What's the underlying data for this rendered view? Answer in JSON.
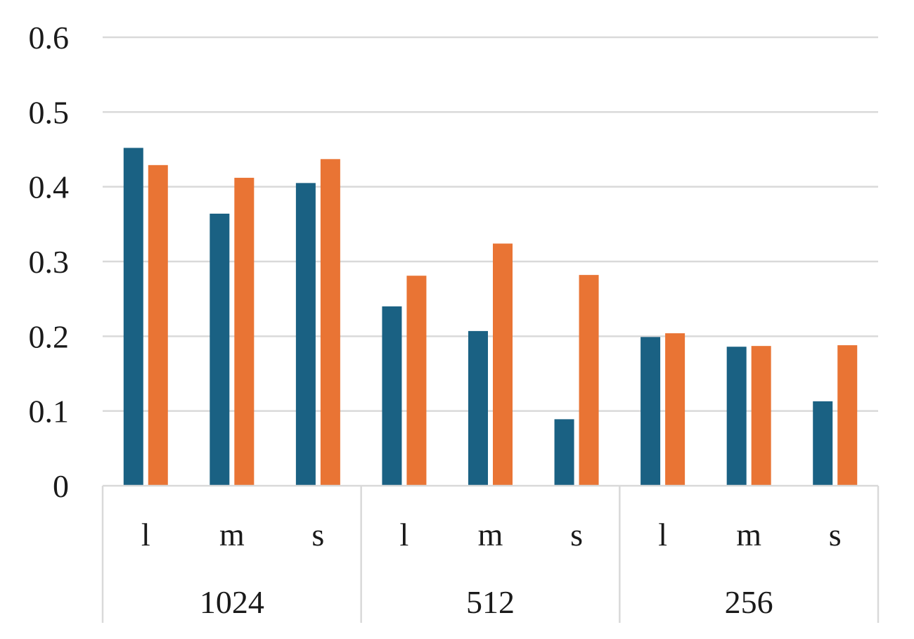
{
  "chart_data": {
    "type": "bar",
    "title": "",
    "xlabel": "",
    "ylabel": "",
    "ylim": [
      0,
      0.6
    ],
    "yticks": [
      "0",
      "0.1",
      "0.2",
      "0.3",
      "0.4",
      "0.5",
      "0.6"
    ],
    "grid": true,
    "legend": "none",
    "groups": [
      {
        "label": "1024",
        "categories": [
          "l",
          "m",
          "s"
        ]
      },
      {
        "label": "512",
        "categories": [
          "l",
          "m",
          "s"
        ]
      },
      {
        "label": "256",
        "categories": [
          "l",
          "m",
          "s"
        ]
      }
    ],
    "series": [
      {
        "color": "#1a6183",
        "values": [
          0.452,
          0.364,
          0.405,
          0.24,
          0.207,
          0.089,
          0.199,
          0.186,
          0.113
        ]
      },
      {
        "color": "#e97434",
        "values": [
          0.429,
          0.412,
          0.437,
          0.281,
          0.324,
          0.282,
          0.204,
          0.187,
          0.188
        ]
      }
    ]
  }
}
